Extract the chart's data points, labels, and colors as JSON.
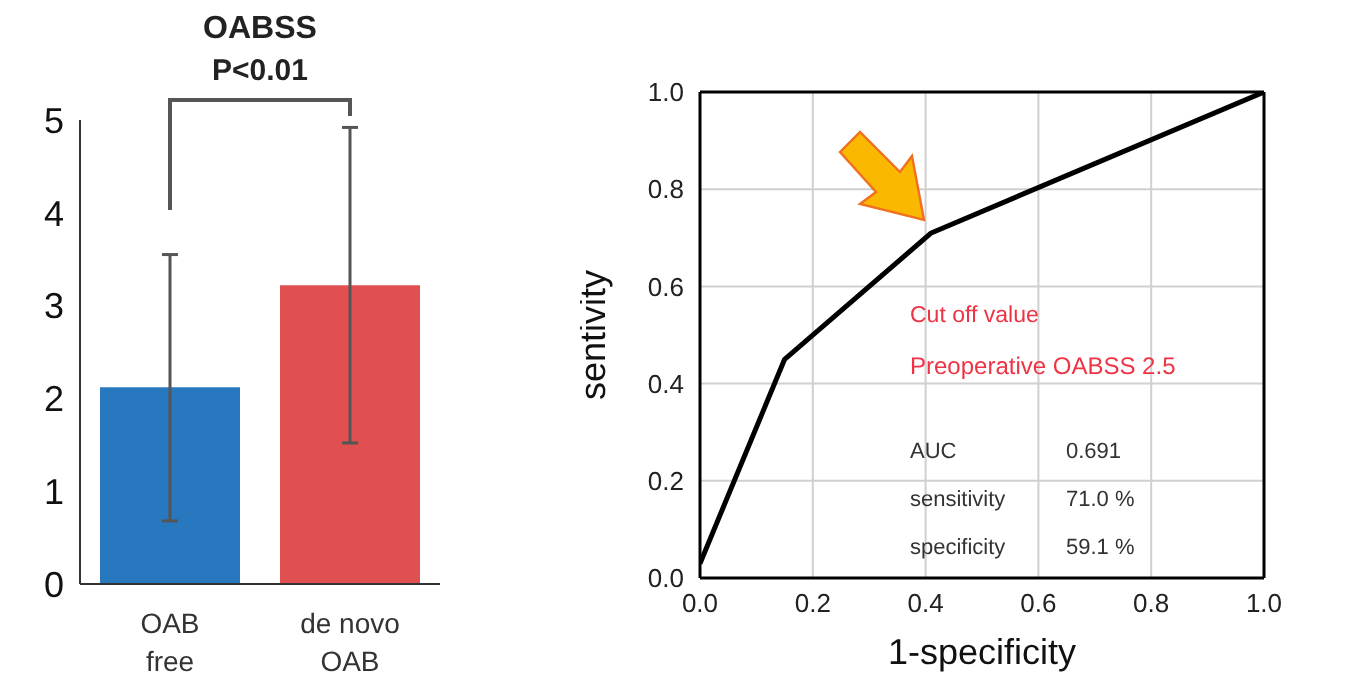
{
  "chart_data": [
    {
      "type": "bar",
      "title": "OABSS",
      "categories": [
        "OAB free",
        "de novo OAB"
      ],
      "colors": [
        "#2878c0",
        "#e05050"
      ],
      "values": [
        2.12,
        3.22
      ],
      "errors": [
        [
          0.68,
          3.55
        ],
        [
          1.52,
          4.92
        ]
      ],
      "ylim": [
        0,
        5
      ],
      "yticks": [
        0,
        1,
        2,
        3,
        4,
        5
      ],
      "grid": false,
      "annotations": [
        "P<0.01"
      ]
    },
    {
      "type": "line",
      "xlabel": "1-specificity",
      "ylabel": "sentivity",
      "x": [
        0,
        0.15,
        0.41,
        1
      ],
      "series": [
        {
          "color": "#000000",
          "values": [
            0.03,
            0.45,
            0.71,
            1
          ]
        }
      ],
      "xlim": [
        0,
        1
      ],
      "xticks": [
        {
          "value": 0,
          "label": "0.0"
        },
        {
          "value": 0.2,
          "label": "0.2"
        },
        {
          "value": 0.4,
          "label": "0.4"
        },
        {
          "value": 0.6,
          "label": "0.6"
        },
        {
          "value": 0.8,
          "label": "0.8"
        },
        {
          "value": 1,
          "label": "1.0"
        }
      ],
      "ylim": [
        0,
        1
      ],
      "yticks": [
        {
          "value": 0,
          "label": "0.0"
        },
        {
          "value": 0.2,
          "label": "0.2"
        },
        {
          "value": 0.4,
          "label": "0.4"
        },
        {
          "value": 0.6,
          "label": "0.6"
        },
        {
          "value": 0.8,
          "label": "0.8"
        },
        {
          "value": 1,
          "label": "1.0"
        }
      ],
      "grid": true,
      "marker": "none",
      "line_style": "solid",
      "annotations": [
        "Cut off value",
        "Preoperative OABSS 2.5",
        "AUC",
        "0.691",
        "sensitivity",
        "71.0 %",
        "specificity",
        "59.1 %"
      ]
    }
  ]
}
